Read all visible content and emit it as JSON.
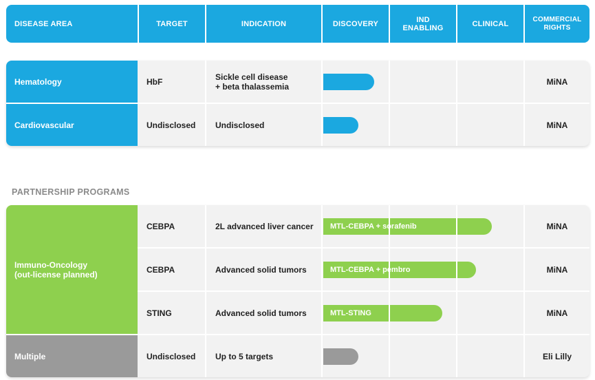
{
  "colors": {
    "header": "#1ba8e0",
    "hematology": "#1ba8e0",
    "cardiovascular": "#1ba8e0",
    "immuno": "#8ed04e",
    "multiple": "#9a9a9a",
    "bar_blue": "#1ba8e0",
    "bar_green": "#8ed04e",
    "bar_gray": "#9a9a9a"
  },
  "header": {
    "disease_area": "DISEASE AREA",
    "target": "TARGET",
    "indication": "INDICATION",
    "discovery": "DISCOVERY",
    "ind_enabling": "IND\nENABLING",
    "clinical": "CLINICAL",
    "commercial_rights": "COMMERCIAL\nRIGHTS"
  },
  "partnership_title": "PARTNERSHIP PROGRAMS",
  "chart_data": {
    "type": "table",
    "stages": [
      "Discovery",
      "IND Enabling",
      "Clinical"
    ],
    "groups": [
      {
        "section": "",
        "areas": [
          {
            "name": "Hematology",
            "color": "#1ba8e0",
            "rows": [
              {
                "target": "HbF",
                "indication": "Sickle cell disease\n+ beta thalassemia",
                "progress": 0.75,
                "bar_label": "",
                "bar_color": "#1ba8e0",
                "rights": "MiNA"
              }
            ]
          },
          {
            "name": "Cardiovascular",
            "color": "#1ba8e0",
            "rows": [
              {
                "target": "Undisclosed",
                "indication": "Undisclosed",
                "progress": 0.52,
                "bar_label": "",
                "bar_color": "#1ba8e0",
                "rights": "MiNA"
              }
            ]
          }
        ]
      },
      {
        "section": "PARTNERSHIP PROGRAMS",
        "areas": [
          {
            "name": "Immuno-Oncology\n(out-license planned)",
            "color": "#8ed04e",
            "rows": [
              {
                "target": "CEBPA",
                "indication": "2L advanced liver cancer",
                "progress": 2.5,
                "bar_label": "MTL-CEBPA + sorafenib",
                "bar_color": "#8ed04e",
                "rights": "MiNA"
              },
              {
                "target": "CEBPA",
                "indication": "Advanced solid tumors",
                "progress": 2.27,
                "bar_label": "MTL-CEBPA + pembro",
                "bar_color": "#8ed04e",
                "rights": "MiNA"
              },
              {
                "target": "STING",
                "indication": "Advanced solid tumors",
                "progress": 1.77,
                "bar_label": "MTL-STING",
                "bar_color": "#8ed04e",
                "rights": "MiNA"
              }
            ]
          },
          {
            "name": "Multiple",
            "color": "#9a9a9a",
            "rows": [
              {
                "target": "Undisclosed",
                "indication": "Up to 5 targets",
                "progress": 0.52,
                "bar_label": "",
                "bar_color": "#9a9a9a",
                "rights": "Eli Lilly"
              }
            ]
          }
        ]
      }
    ]
  }
}
